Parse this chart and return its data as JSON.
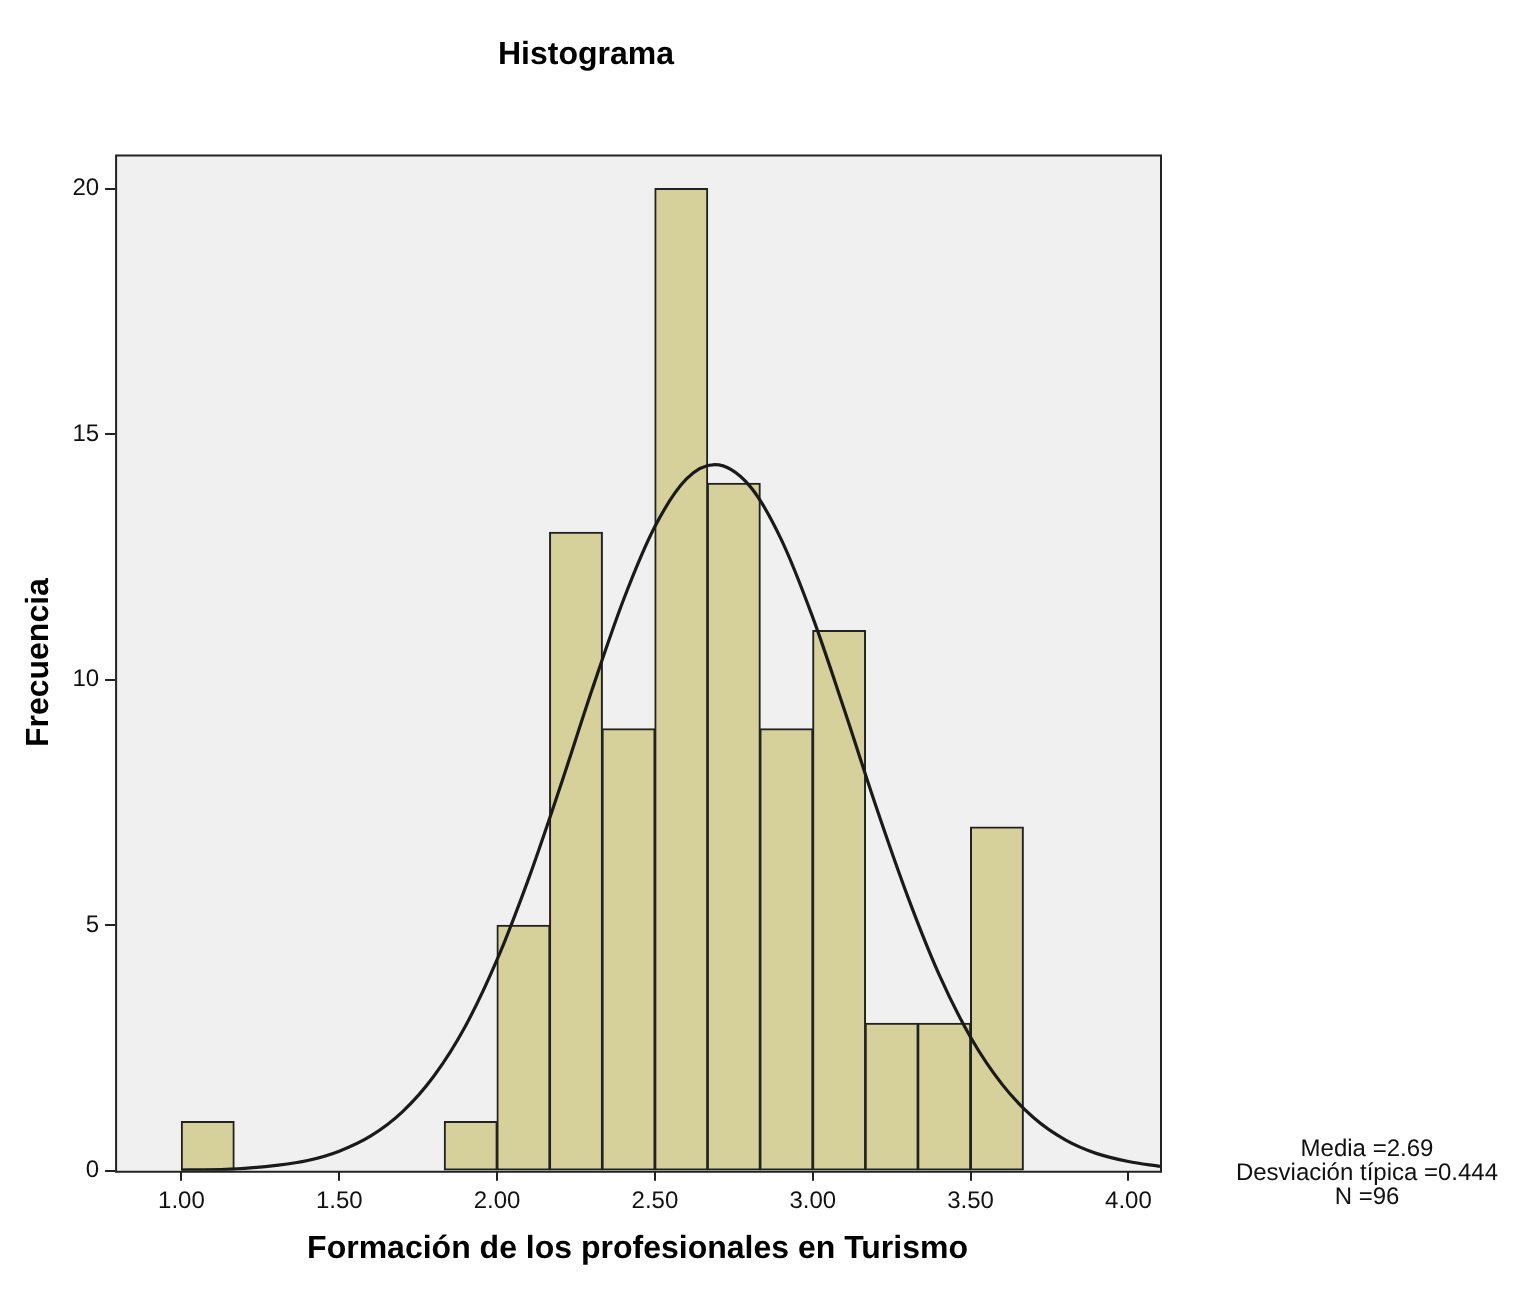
{
  "chart_data": {
    "type": "histogram",
    "title": "Histograma",
    "xlabel": "Formación de los profesionales en Turismo",
    "ylabel": "Frecuencia",
    "series": [
      {
        "color": "#d6d09a",
        "bins": [
          1,
          1.167,
          1.333,
          1.5,
          1.667,
          1.833,
          2,
          2.167,
          2.333,
          2.5,
          2.667,
          2.833,
          3,
          3.167,
          3.333,
          3.5,
          3.667
        ],
        "values": [
          1,
          0,
          0,
          0,
          0,
          1,
          5,
          13,
          9,
          20,
          14,
          9,
          11,
          3,
          3,
          7
        ]
      },
      {
        "type": "line",
        "color": "#1a1a1a",
        "x": [
          1.0,
          1.1,
          1.2,
          1.3,
          1.4,
          1.5,
          1.6,
          1.7,
          1.8,
          1.9,
          2.0,
          2.1,
          2.2,
          2.3,
          2.4,
          2.5,
          2.6,
          2.69,
          2.8,
          2.9,
          3.0,
          3.1,
          3.2,
          3.3,
          3.4,
          3.5,
          3.6,
          3.7,
          3.8,
          3.9,
          4.0,
          4.1
        ],
        "values": [
          0.01,
          0.02,
          0.05,
          0.11,
          0.21,
          0.4,
          0.71,
          1.2,
          1.93,
          2.95,
          4.3,
          5.95,
          7.82,
          9.78,
          11.62,
          13.12,
          14.09,
          14.38,
          13.95,
          12.86,
          11.27,
          9.39,
          7.43,
          5.6,
          4.0,
          2.72,
          1.76,
          1.08,
          0.63,
          0.35,
          0.19,
          0.09
        ]
      }
    ],
    "xlim": [
      0.79,
      4.1
    ],
    "xticks": [
      {
        "value": 1,
        "label": "1.00"
      },
      {
        "value": 1.5,
        "label": "1.50"
      },
      {
        "value": 2,
        "label": "2.00"
      },
      {
        "value": 2.5,
        "label": "2.50"
      },
      {
        "value": 3,
        "label": "3.00"
      },
      {
        "value": 3.5,
        "label": "3.50"
      },
      {
        "value": 4,
        "label": "4.00"
      }
    ],
    "ylim": [
      0,
      20.7
    ],
    "yticks": [
      0,
      5,
      10,
      15,
      20
    ],
    "grid": false,
    "legend": false,
    "marker": "none",
    "annotations": [
      "Media =2.69",
      "Desviación típica =0.444",
      "N =96"
    ]
  }
}
